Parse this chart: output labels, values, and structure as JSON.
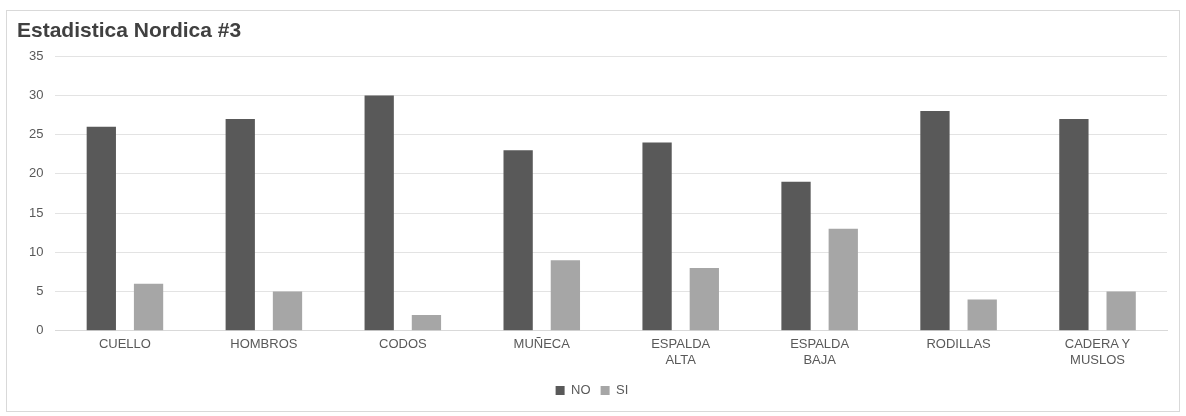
{
  "chart_data": {
    "type": "bar",
    "title": "Estadistica Nordica #3",
    "categories": [
      "CUELLO",
      "HOMBROS",
      "CODOS",
      "MUÑECA",
      "ESPALDA ALTA",
      "ESPALDA BAJA",
      "RODILLAS",
      "CADERA Y MUSLOS"
    ],
    "series": [
      {
        "name": "NO",
        "color": "#595959",
        "values": [
          26,
          27,
          30,
          23,
          24,
          19,
          28,
          27
        ]
      },
      {
        "name": "SI",
        "color": "#a6a6a6",
        "values": [
          6,
          5,
          2,
          9,
          8,
          13,
          4,
          5
        ]
      }
    ],
    "ylim": [
      0,
      35
    ],
    "yticks": [
      0,
      5,
      10,
      15,
      20,
      25,
      30,
      35
    ],
    "grid": "y",
    "legend": "bottom"
  }
}
